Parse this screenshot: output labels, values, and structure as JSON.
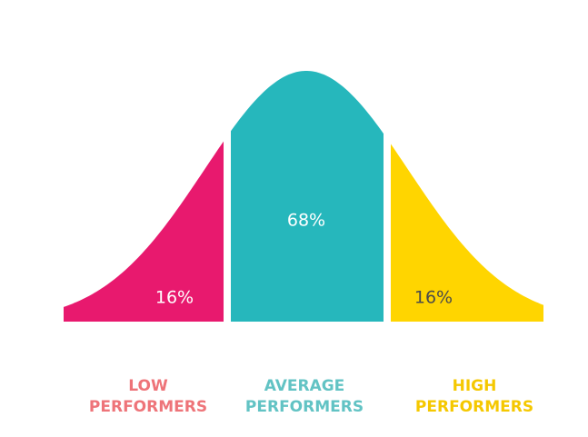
{
  "segments": [
    {
      "lines": [
        "LOW",
        "PERFORMERS"
      ],
      "share": "16%",
      "color": "#e8196e",
      "label_color": "#ee7479",
      "share_color": "#ffffff"
    },
    {
      "lines": [
        "AVERAGE",
        "PERFORMERS"
      ],
      "share": "68%",
      "color": "#26b7bc",
      "label_color": "#62c3c4",
      "share_color": "#ffffff"
    },
    {
      "lines": [
        "HIGH",
        "PERFORMERS"
      ],
      "share": "16%",
      "color": "#ffd500",
      "label_color": "#f5c800",
      "share_color": "#4a4a4a"
    }
  ]
}
